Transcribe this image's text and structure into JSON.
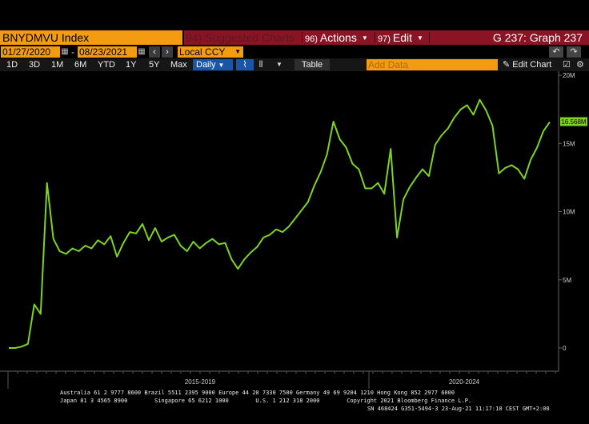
{
  "header": {
    "security": "BNYDMVU Index",
    "suggested": "94) Suggested Charts",
    "actions_num": "96)",
    "actions_label": "Actions",
    "edit_num": "97)",
    "edit_label": "Edit",
    "graph_title": "G 237: Graph 237"
  },
  "dates": {
    "start": "01/27/2020",
    "end": "08/23/2021",
    "currency": "Local CCY"
  },
  "toolbar": {
    "periods": [
      "1D",
      "3D",
      "1M",
      "6M",
      "YTD",
      "1Y",
      "5Y",
      "Max"
    ],
    "frequency": "Daily",
    "table_label": "Table",
    "add_data_placeholder": "Add Data",
    "edit_chart_label": "Edit Chart"
  },
  "colors": {
    "series": "#7ed321",
    "amber": "#f39c12",
    "header_red": "#8b1424",
    "active_blue": "#1a56a8"
  },
  "chart_data": {
    "type": "line",
    "title": "",
    "xlabel": "",
    "ylabel": "",
    "y_ticks": [
      "20M",
      "15M",
      "10M",
      "5M",
      "0"
    ],
    "ylim": [
      -1.7,
      20
    ],
    "x_period_labels": [
      "2015-2019",
      "2020-2024"
    ],
    "last_value_label": "16.568M",
    "series": [
      {
        "values": [
          0,
          0,
          0.1,
          0.3,
          3.2,
          2.5,
          12.1,
          8,
          7.1,
          6.9,
          7.3,
          7.1,
          7.5,
          7.3,
          7.9,
          7.6,
          8.2,
          6.7,
          7.7,
          8.5,
          8.4,
          9.1,
          7.9,
          8.8,
          7.8,
          8.1,
          8.3,
          7.5,
          7.1,
          7.8,
          7.3,
          7.7,
          8,
          7.6,
          7.7,
          6.5,
          5.8,
          6.5,
          7,
          7.4,
          8.1,
          8.3,
          8.7,
          8.5,
          8.9,
          9.5,
          10.1,
          10.7,
          11.9,
          12.9,
          14.2,
          16.6,
          15.3,
          14.7,
          13.5,
          13.1,
          11.7,
          11.7,
          12.1,
          11.3,
          14.6,
          8.1,
          10.9,
          11.8,
          12.5,
          13.1,
          12.6,
          14.9,
          15.6,
          16.1,
          16.9,
          17.5,
          17.8,
          17.1,
          18.2,
          17.4,
          16.3,
          12.8,
          13.2,
          13.4,
          13.1,
          12.4,
          13.8,
          14.7,
          15.9,
          16.568
        ]
      }
    ]
  },
  "footer": {
    "line1": "Australia 61 2 9777 8600 Brazil 5511 2395 9000 Europe 44 20 7330 7500 Germany 49 69 9204 1210 Hong Kong 852 2977 6000",
    "line2": "Japan 81 3 4565 8900        Singapore 65 6212 1000        U.S. 1 212 318 2000        Copyright 2021 Bloomberg Finance L.P.",
    "line3": "SN 468424 G351-5494-3 23-Aug-21 11:17:10 CEST GMT+2:00"
  }
}
